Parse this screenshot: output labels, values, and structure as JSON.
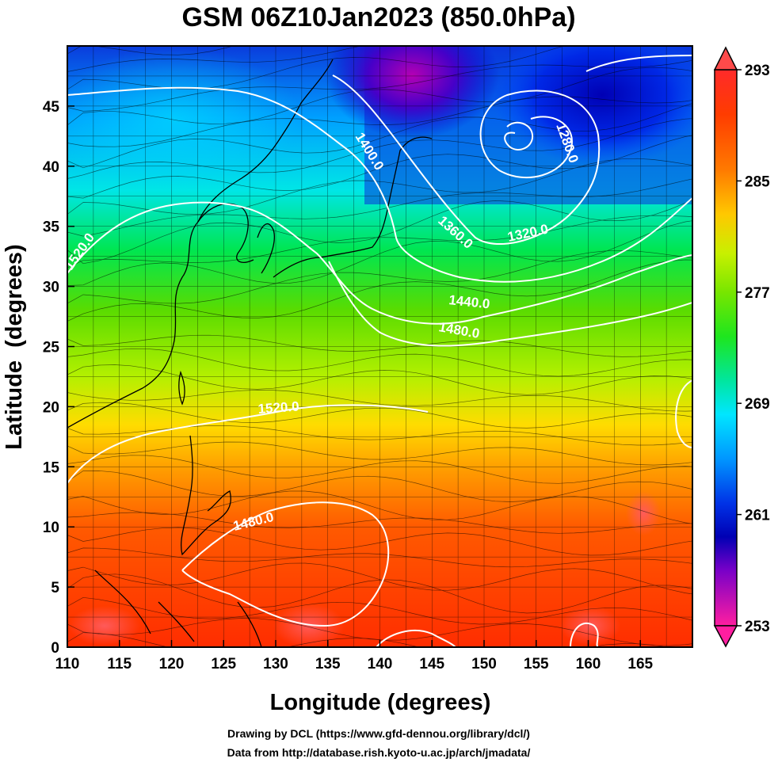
{
  "title": "GSM 06Z10Jan2023 (850.0hPa)",
  "x_axis": {
    "label": "Longitude (degrees)",
    "range": [
      110,
      170
    ],
    "ticks": [
      110,
      115,
      120,
      125,
      130,
      135,
      140,
      145,
      150,
      155,
      160,
      165
    ]
  },
  "y_axis": {
    "label": "Latitude  (degrees)",
    "range": [
      0,
      50
    ],
    "ticks": [
      0,
      5,
      10,
      15,
      20,
      25,
      30,
      35,
      40,
      45
    ]
  },
  "colorbar": {
    "range": [
      253,
      293
    ],
    "tick_labels": [
      "293",
      "285",
      "277",
      "269",
      "261",
      "253"
    ],
    "tick_values": [
      293,
      285,
      277,
      269,
      261,
      253
    ],
    "colors": [
      "#ff1493",
      "#c800c8",
      "#7800c8",
      "#0000c8",
      "#0050ff",
      "#0096ff",
      "#00d2ff",
      "#00f0c8",
      "#00e664",
      "#32d21e",
      "#78e600",
      "#c8f000",
      "#ffe600",
      "#ffb400",
      "#ff7800",
      "#ff3c00",
      "#e60000",
      "#ff5050"
    ]
  },
  "contours": [
    {
      "label": "1400.0"
    },
    {
      "label": "1360.0"
    },
    {
      "label": "1320.0"
    },
    {
      "label": "1280.0"
    },
    {
      "label": "1440.0"
    },
    {
      "label": "1480.0"
    },
    {
      "label": "1520.0"
    },
    {
      "label": "1520.0"
    },
    {
      "label": "1480.0"
    }
  ],
  "credits": {
    "line1": "Drawing by DCL (https://www.gfd-dennou.org/library/dcl/)",
    "line2": "Data from http://database.rish.kyoto-u.ac.jp/arch/jmadata/"
  }
}
